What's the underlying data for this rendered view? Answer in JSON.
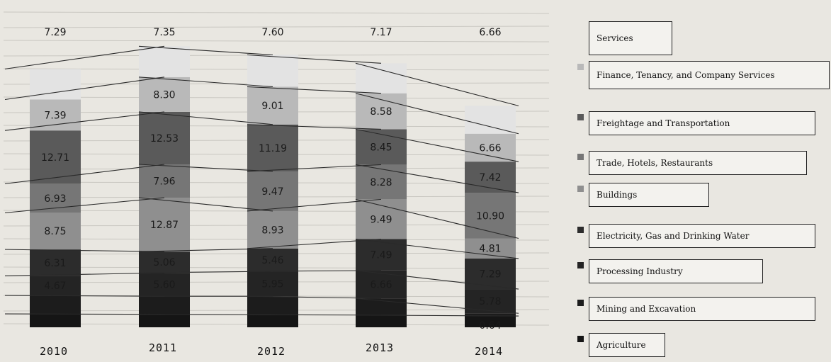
{
  "chart_data": {
    "type": "bar",
    "stacked": true,
    "categories": [
      "2010",
      "2011",
      "2012",
      "2013",
      "2014"
    ],
    "series": [
      {
        "name": "Agriculture",
        "color": "#151515",
        "values": [
          3.2,
          3.1,
          3.0,
          2.9,
          2.7
        ]
      },
      {
        "name": "Mining and Excavation",
        "color": "#1c1c1c",
        "values": [
          4.4,
          4.3,
          4.4,
          4.0,
          0.64
        ]
      },
      {
        "name": "Processing Industry",
        "color": "#242424",
        "values": [
          4.67,
          5.6,
          5.95,
          6.66,
          5.78
        ]
      },
      {
        "name": "Electricity, Gas and Drinking Water",
        "color": "#2c2c2c",
        "values": [
          6.31,
          5.06,
          5.46,
          7.49,
          7.29
        ]
      },
      {
        "name": "Buildings",
        "color": "#8f8f8f",
        "values": [
          8.75,
          12.87,
          8.93,
          9.49,
          4.81
        ]
      },
      {
        "name": "Trade, Hotels, Restaurants",
        "color": "#767676",
        "values": [
          6.93,
          7.96,
          9.47,
          8.28,
          10.9
        ]
      },
      {
        "name": "Freightage and Transportation",
        "color": "#5a5a5a",
        "values": [
          12.71,
          12.53,
          11.19,
          8.45,
          7.42
        ]
      },
      {
        "name": "Finance, Tenancy, and Company Services",
        "color": "#b9b9b9",
        "values": [
          7.39,
          8.3,
          9.01,
          8.58,
          6.66
        ]
      },
      {
        "name": "Services",
        "color": "#e3e3e3",
        "values": [
          7.29,
          7.35,
          7.6,
          7.17,
          6.66
        ]
      }
    ],
    "data_labels": {
      "Agriculture": [
        null,
        null,
        null,
        null,
        null
      ],
      "Mining and Excavation": [
        null,
        null,
        null,
        null,
        "0.64"
      ],
      "Processing Industry": [
        "4.67",
        "5.60",
        "5.95",
        "6.66",
        "5.78"
      ],
      "Electricity, Gas and Drinking Water": [
        "6.31",
        "5.06",
        "5.46",
        "7.49",
        "7.29"
      ],
      "Buildings": [
        "8.75",
        "12.87",
        "8.93",
        "9.49",
        "4.81"
      ],
      "Trade, Hotels, Restaurants": [
        "6.93",
        "7.96",
        "9.47",
        "8.28",
        "10.90"
      ],
      "Freightage and Transportation": [
        "12.71",
        "12.53",
        "11.19",
        "8.45",
        "7.42"
      ],
      "Finance, Tenancy, and Company Services": [
        "7.39",
        "8.30",
        "9.01",
        "8.58",
        "6.66"
      ],
      "Services": [
        "7.29",
        "7.35",
        "7.60",
        "7.17",
        "6.66"
      ]
    },
    "ylim": [
      0,
      70
    ],
    "grid": true,
    "legend_position": "right",
    "title": "",
    "xlabel": "",
    "ylabel": ""
  }
}
